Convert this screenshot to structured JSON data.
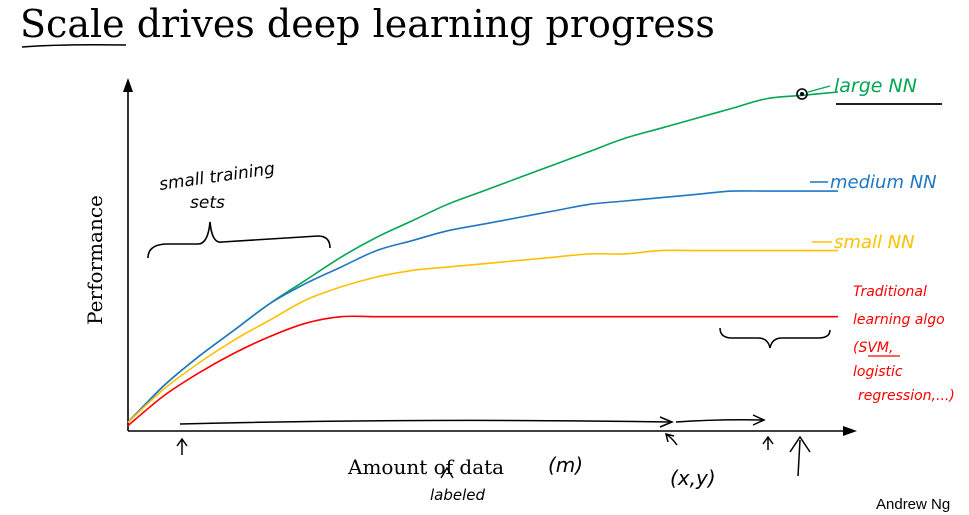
{
  "slide": {
    "title_part1": "Scale",
    "title_part2": " drives deep learning progress",
    "author": "Andrew Ng"
  },
  "chart_data": {
    "type": "line",
    "title": "Scale drives deep learning progress",
    "xlabel": "Amount of data",
    "ylabel": "Performance",
    "x_range": [
      0,
      100
    ],
    "y_range": [
      0,
      100
    ],
    "grid": false,
    "x": [
      0,
      5,
      10,
      15,
      20,
      25,
      30,
      35,
      40,
      45,
      50,
      55,
      60,
      65,
      70,
      75,
      80,
      85,
      90,
      95,
      100
    ],
    "series": [
      {
        "name": "large NN",
        "color": "#00a651",
        "values": [
          2,
          13,
          22,
          30,
          38,
          45,
          52,
          58,
          63,
          68,
          72,
          76,
          80,
          84,
          88,
          91,
          94,
          97,
          100,
          101,
          102
        ]
      },
      {
        "name": "medium NN",
        "color": "#1f77c4",
        "values": [
          2,
          13,
          22,
          30,
          38,
          44,
          49,
          54,
          57,
          60,
          62,
          64,
          66,
          68,
          69,
          70,
          71,
          72,
          72,
          72,
          72
        ]
      },
      {
        "name": "small NN",
        "color": "#ffc000",
        "values": [
          2,
          12,
          20,
          27,
          33,
          39,
          43,
          46,
          48,
          49,
          50,
          51,
          52,
          53,
          53,
          54,
          54,
          54,
          54,
          54,
          54
        ]
      },
      {
        "name": "Traditional learning algorithm",
        "color": "#ff0000",
        "values": [
          1,
          10,
          17,
          23,
          28,
          32,
          34,
          34,
          34,
          34,
          34,
          34,
          34,
          34,
          34,
          34,
          34,
          34,
          34,
          34,
          34
        ]
      }
    ],
    "series_labels": [
      "large NN",
      "medium NN",
      "small NN"
    ],
    "traditional_label_lines": [
      "Traditional",
      "learning algo",
      "(SVM,",
      "logistic",
      "regression,...)"
    ],
    "annotations": {
      "small_training_sets": [
        "small training",
        "sets"
      ],
      "m": "(m)",
      "labeled": "labeled",
      "xy": "(x,y)"
    }
  }
}
